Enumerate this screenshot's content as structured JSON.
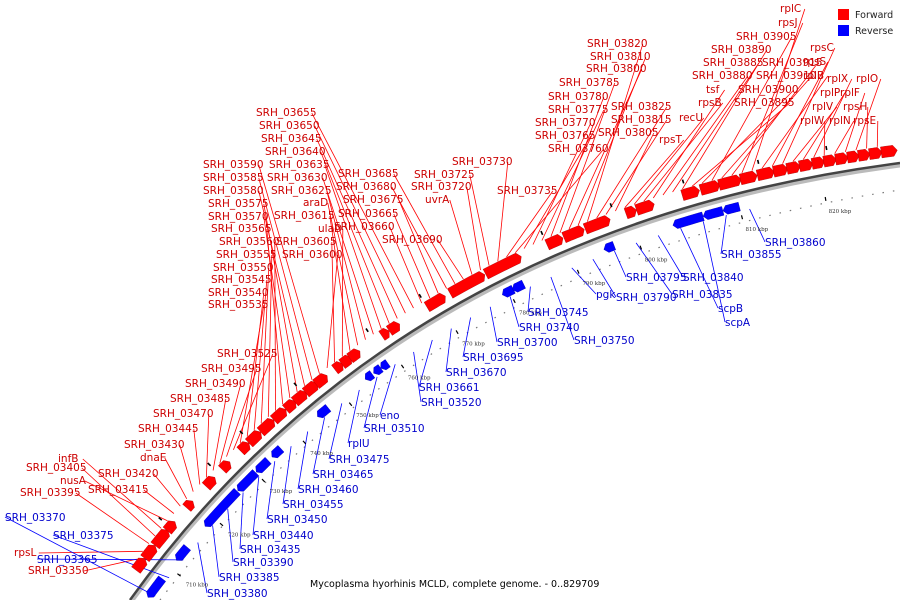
{
  "caption": "Mycoplasma hyorhinis MCLD, complete genome. - 0..829709",
  "legend": [
    {
      "label": "Forward",
      "color": "#ff0000"
    },
    {
      "label": "Reverse",
      "color": "#0000ff"
    }
  ],
  "colors": {
    "forward": "#ff0000",
    "reverse": "#0000ff",
    "forward_label": "#cc0000",
    "reverse_label": "#0000cc",
    "axis": "#555555"
  },
  "ticks": [
    "710 kbp",
    "720 kbp",
    "730 kbp",
    "740 kbp",
    "750 kbp",
    "760 kbp",
    "770 kbp",
    "780 kbp",
    "790 kbp",
    "800 kbp",
    "810 kbp",
    "820 kbp"
  ],
  "forward_labels": [
    "SRH_03350",
    "rpsL",
    "SRH_03395",
    "SRH_03405",
    "infB",
    "nusA",
    "SRH_03415",
    "SRH_03420",
    "dnaE",
    "SRH_03430",
    "SRH_03445",
    "SRH_03470",
    "SRH_03485",
    "SRH_03490",
    "SRH_03495",
    "SRH_03525",
    "SRH_03535",
    "SRH_03540",
    "SRH_03545",
    "SRH_03550",
    "SRH_03555",
    "SRH_03560",
    "SRH_03565",
    "SRH_03570",
    "SRH_03575",
    "SRH_03580",
    "SRH_03585",
    "SRH_03590",
    "SRH_03600",
    "SRH_03605",
    "ulaD",
    "SRH_03615",
    "araD",
    "SRH_03625",
    "SRH_03630",
    "SRH_03635",
    "SRH_03640",
    "SRH_03645",
    "SRH_03650",
    "SRH_03655",
    "SRH_03660",
    "SRH_03665",
    "SRH_03675",
    "SRH_03680",
    "SRH_03685",
    "SRH_03690",
    "uvrA",
    "SRH_03720",
    "SRH_03725",
    "SRH_03730",
    "SRH_03735",
    "SRH_03760",
    "SRH_03765",
    "SRH_03770",
    "SRH_03775",
    "SRH_03780",
    "SRH_03785",
    "SRH_03800",
    "SRH_03810",
    "SRH_03820",
    "SRH_03825",
    "SRH_03815",
    "SRH_03805",
    "rpsT",
    "recU",
    "rpsB",
    "tsf",
    "SRH_03880",
    "SRH_03885",
    "SRH_03890",
    "SRH_03895",
    "SRH_03900",
    "SRH_03905",
    "SRH_03910",
    "SRH_03915",
    "rpsJ",
    "rplC",
    "rplB",
    "rpsS",
    "rpsC",
    "rplV",
    "rplP",
    "rplX",
    "rplW",
    "rplN",
    "rplF",
    "rplO",
    "rpsH",
    "rpsE"
  ],
  "reverse_labels": [
    "SRH_03370",
    "SRH_03375",
    "SRH_03365",
    "SRH_03380",
    "SRH_03385",
    "SRH_03390",
    "SRH_03435",
    "SRH_03440",
    "SRH_03450",
    "SRH_03455",
    "SRH_03460",
    "SRH_03465",
    "SRH_03475",
    "rplU",
    "SRH_03510",
    "eno",
    "SRH_03520",
    "SRH_03661",
    "SRH_03670",
    "SRH_03695",
    "SRH_03700",
    "SRH_03740",
    "SRH_03745",
    "SRH_03750",
    "pgk",
    "SRH_03790",
    "SRH_03795",
    "SRH_03835",
    "SRH_03840",
    "scpB",
    "scpA",
    "SRH_03855",
    "SRH_03860"
  ]
}
